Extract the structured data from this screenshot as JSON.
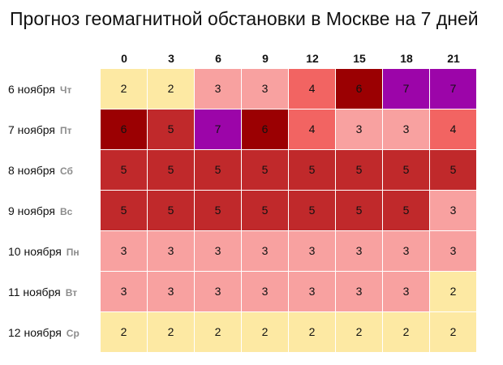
{
  "title": "Прогноз геомагнитной обстановки в Москве на 7 дней",
  "hours": [
    "0",
    "3",
    "6",
    "9",
    "12",
    "15",
    "18",
    "21"
  ],
  "level_colors": {
    "2": "#fde9a3",
    "3": "#f8a1a0",
    "4": "#f26462",
    "5": "#c0292b",
    "6": "#9b0002",
    "7": "#9c05a9"
  },
  "days": [
    {
      "date": "6 ноября",
      "dow": "Чт",
      "values": [
        2,
        2,
        3,
        3,
        4,
        6,
        7,
        7
      ]
    },
    {
      "date": "7 ноября",
      "dow": "Пт",
      "values": [
        6,
        5,
        7,
        6,
        4,
        3,
        3,
        4
      ]
    },
    {
      "date": "8 ноября",
      "dow": "Сб",
      "values": [
        5,
        5,
        5,
        5,
        5,
        5,
        5,
        5
      ]
    },
    {
      "date": "9 ноября",
      "dow": "Вс",
      "values": [
        5,
        5,
        5,
        5,
        5,
        5,
        5,
        3
      ]
    },
    {
      "date": "10 ноября",
      "dow": "Пн",
      "values": [
        3,
        3,
        3,
        3,
        3,
        3,
        3,
        3
      ]
    },
    {
      "date": "11 ноября",
      "dow": "Вт",
      "values": [
        3,
        3,
        3,
        3,
        3,
        3,
        3,
        2
      ]
    },
    {
      "date": "12 ноября",
      "dow": "Ср",
      "values": [
        2,
        2,
        2,
        2,
        2,
        2,
        2,
        2
      ]
    }
  ]
}
